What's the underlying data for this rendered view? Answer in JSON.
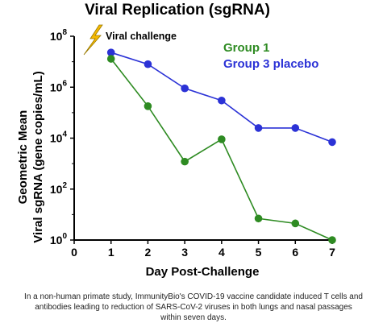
{
  "chart_data": {
    "type": "line",
    "title": "Viral Replication (sgRNA)",
    "xlabel": "Day Post-Challenge",
    "ylabel_line1": "Geometric Mean",
    "ylabel_line2": "Viral sgRNA (gene copies/mL)",
    "xlim": [
      0,
      7
    ],
    "ylim_exponent": [
      0,
      8
    ],
    "yscale": "log",
    "x_ticks": [
      "0",
      "1",
      "2",
      "3",
      "4",
      "5",
      "6",
      "7"
    ],
    "y_ticks": [
      {
        "base": "10",
        "exp": "0",
        "value": 1
      },
      {
        "base": "10",
        "exp": "2",
        "value": 100
      },
      {
        "base": "10",
        "exp": "4",
        "value": 10000
      },
      {
        "base": "10",
        "exp": "6",
        "value": 1000000
      },
      {
        "base": "10",
        "exp": "8",
        "value": 100000000
      }
    ],
    "annotation": {
      "text": "Viral challenge",
      "icon": "lightning-bolt-icon",
      "color": "#f5b800"
    },
    "grid": false,
    "legend_position": "top-right",
    "series": [
      {
        "name": "Group 1",
        "color": "#2e8b22",
        "x": [
          1,
          2,
          3,
          4,
          5,
          6,
          7
        ],
        "y": [
          13000000,
          180000,
          1200,
          9000,
          7,
          4.5,
          1
        ]
      },
      {
        "name": "Group 3 placebo",
        "color": "#2b32d6",
        "x": [
          1,
          2,
          3,
          4,
          5,
          6,
          7
        ],
        "y": [
          23000000,
          8000000,
          900000,
          300000,
          25000,
          25000,
          7000
        ]
      }
    ]
  },
  "caption": "In a non-human primate study, ImmunityBio's COVID-19 vaccine candidate induced T cells and antibodies leading to reduction of SARS-CoV-2 viruses in both lungs and nasal passages within seven days."
}
